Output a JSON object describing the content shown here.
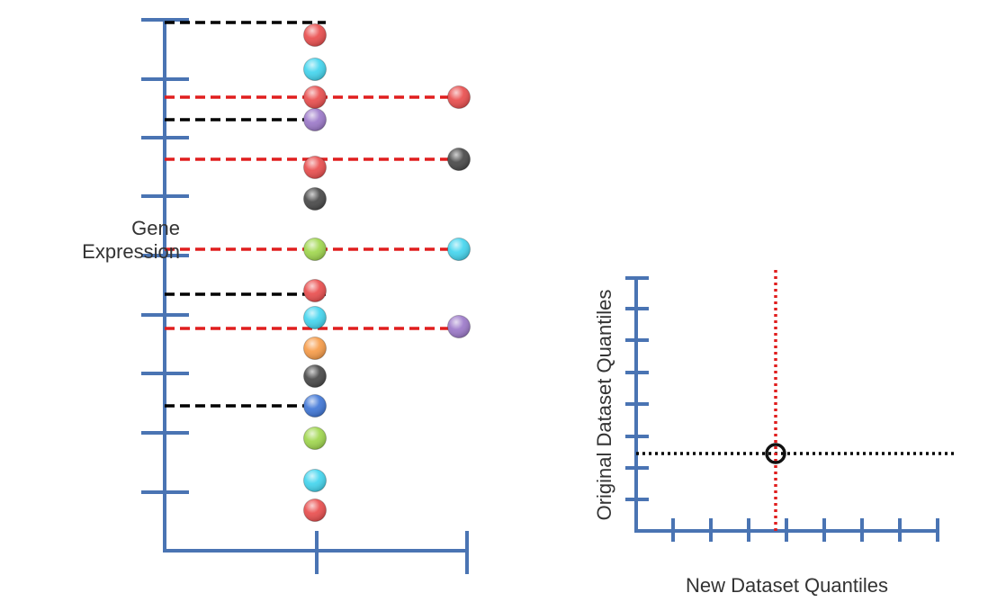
{
  "colors": {
    "axis": "#4a74b3",
    "black_dash": "#000000",
    "red_dash": "#e01e1e",
    "red": "#e94a4a",
    "cyan": "#3fd4ee",
    "purple": "#9a76c8",
    "gray": "#444444",
    "green": "#9ed64a",
    "orange": "#f79a45",
    "blue": "#3c74d6"
  },
  "left_panel": {
    "ylabel_line1": "Gene",
    "ylabel_line2": "Expression",
    "column_dots": [
      {
        "color": "red"
      },
      {
        "color": "cyan"
      },
      {
        "color": "red"
      },
      {
        "color": "purple"
      },
      {
        "color": "red"
      },
      {
        "color": "gray"
      },
      {
        "color": "green"
      },
      {
        "color": "red"
      },
      {
        "color": "cyan"
      },
      {
        "color": "orange"
      },
      {
        "color": "gray"
      },
      {
        "color": "blue"
      },
      {
        "color": "green"
      },
      {
        "color": "cyan"
      },
      {
        "color": "red"
      }
    ],
    "reference_dots": [
      {
        "color": "red"
      },
      {
        "color": "gray"
      },
      {
        "color": "cyan"
      },
      {
        "color": "purple"
      }
    ]
  },
  "right_panel": {
    "xlabel": "New Dataset Quantiles",
    "ylabel": "Original Dataset Quantiles"
  }
}
